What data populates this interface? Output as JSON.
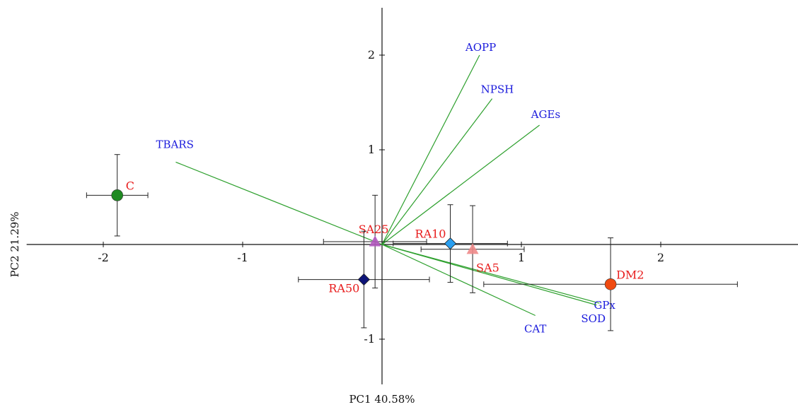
{
  "chart_data": {
    "type": "scatter",
    "subtype": "PCA biplot",
    "title": "",
    "xlabel": "PC1 40.58%",
    "ylabel": "PC2 21.29%",
    "xlim": [
      -2.55,
      3.0
    ],
    "ylim": [
      -1.5,
      2.5
    ],
    "x_ticks": [
      -2,
      -1,
      1,
      2
    ],
    "x_tick_labels": [
      "-2",
      "-1",
      "1",
      "2"
    ],
    "y_ticks": [
      2,
      1,
      -1
    ],
    "y_tick_labels": [
      "2",
      "1",
      "-1"
    ],
    "grid": false,
    "legend": "none",
    "vectors": [
      {
        "name": "AOPP",
        "x": 0.7,
        "y": 2.0
      },
      {
        "name": "NPSH",
        "x": 0.79,
        "y": 1.54
      },
      {
        "name": "AGEs",
        "x": 1.13,
        "y": 1.26
      },
      {
        "name": "TBARS",
        "x": -1.48,
        "y": 0.87
      },
      {
        "name": "GPx",
        "x": 1.56,
        "y": -0.62
      },
      {
        "name": "SOD",
        "x": 1.54,
        "y": -0.64
      },
      {
        "name": "CAT",
        "x": 1.1,
        "y": -0.75
      }
    ],
    "groups": [
      {
        "name": "C",
        "marker": "circle",
        "x": -1.9,
        "y": 0.52,
        "xerr": 0.22,
        "yerr": 0.43
      },
      {
        "name": "SA25",
        "marker": "triangle",
        "x": -0.05,
        "y": 0.03,
        "xerr": 0.37,
        "yerr": 0.49
      },
      {
        "name": "RA10",
        "marker": "diamond",
        "x": 0.49,
        "y": 0.01,
        "xerr": 0.41,
        "yerr": 0.41
      },
      {
        "name": "SA5",
        "marker": "triangle",
        "x": 0.65,
        "y": -0.05,
        "xerr": 0.37,
        "yerr": 0.46
      },
      {
        "name": "RA50",
        "marker": "diamond",
        "x": -0.13,
        "y": -0.37,
        "xerr": 0.47,
        "yerr": 0.51
      },
      {
        "name": "DM2",
        "marker": "circle",
        "x": 1.64,
        "y": -0.42,
        "xerr": 0.91,
        "yerr": 0.49
      }
    ]
  },
  "colors": {
    "vector_line": "#2ea02e",
    "vector_label": "#1a1adc",
    "group_label": "#e81c1c",
    "axis": "#111111",
    "errorbar": "#222222",
    "C": "#1f8a22",
    "SA25": "#b45ac0",
    "RA10": "#2a9ff0",
    "SA5": "#ef8a8a",
    "RA50": "#0d1478",
    "DM2": "#f04a10"
  }
}
